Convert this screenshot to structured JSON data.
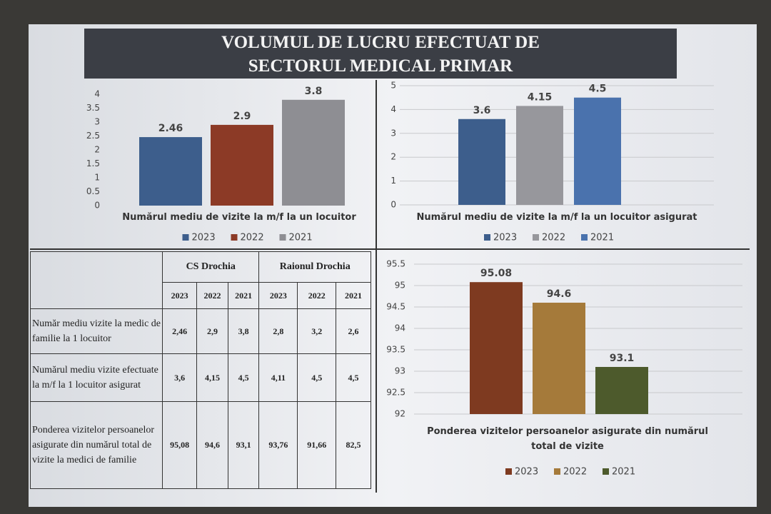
{
  "header": {
    "title_lines": [
      "VOLUMUL DE LUCRU EFECTUAT DE",
      "SECTORUL MEDICAL PRIMAR"
    ]
  },
  "chart_data": [
    {
      "type": "bar",
      "x_label": "Numărul mediu de vizite la m/f la un locuitor",
      "series": [
        {
          "name": "2023",
          "color": "#3d5e8c",
          "values": [
            2.46
          ]
        },
        {
          "name": "2022",
          "color": "#8c3a26",
          "values": [
            2.9
          ]
        },
        {
          "name": "2021",
          "color": "#8e8e93",
          "values": [
            3.8
          ]
        }
      ],
      "ylim": [
        0,
        4
      ],
      "yticks": [
        0,
        0.5,
        1,
        1.5,
        2,
        2.5,
        3,
        3.5,
        4
      ],
      "grid": false
    },
    {
      "type": "bar",
      "x_label": "Numărul mediu de vizite la m/f la un locuitor asigurat",
      "series": [
        {
          "name": "2023",
          "color": "#3d5e8c",
          "values": [
            3.6
          ]
        },
        {
          "name": "2022",
          "color": "#97979c",
          "values": [
            4.15
          ]
        },
        {
          "name": "2021",
          "color": "#4a72ad",
          "values": [
            4.5
          ]
        }
      ],
      "ylim": [
        0,
        5
      ],
      "yticks": [
        0,
        1,
        2,
        3,
        4,
        5
      ],
      "grid": true
    },
    {
      "type": "bar",
      "x_label": "Ponderea vizitelor persoanelor asigurate din numărul total de vizite",
      "series": [
        {
          "name": "2023",
          "color": "#7e3a20",
          "values": [
            95.08
          ]
        },
        {
          "name": "2022",
          "color": "#a57a3a",
          "values": [
            94.6
          ]
        },
        {
          "name": "2021",
          "color": "#4d5a2c",
          "values": [
            93.1
          ]
        }
      ],
      "ylim": [
        92,
        95.5
      ],
      "yticks": [
        92,
        92.5,
        93,
        93.5,
        94,
        94.5,
        95,
        95.5
      ],
      "grid": true
    }
  ],
  "table": {
    "groups": [
      "CS Drochia",
      "Raionul Drochia"
    ],
    "years": [
      "2023",
      "2022",
      "2021",
      "2023",
      "2022",
      "2021"
    ],
    "rows": [
      [
        "Număr mediu vizite la medic de familie la 1 locuitor",
        "2,46",
        "2,9",
        "3,8",
        "2,8",
        "3,2",
        "2,6"
      ],
      [
        "Numărul mediu vizite efectuate la m/f la 1 locuitor asigurat",
        "3,6",
        "4,15",
        "4,5",
        "4,11",
        "4,5",
        "4,5"
      ],
      [
        "Ponderea vizitelor persoanelor asigurate din numărul total de vizite la medici de familie",
        "95,08",
        "94,6",
        "93,1",
        "93,76",
        "91,66",
        "82,5"
      ]
    ]
  }
}
